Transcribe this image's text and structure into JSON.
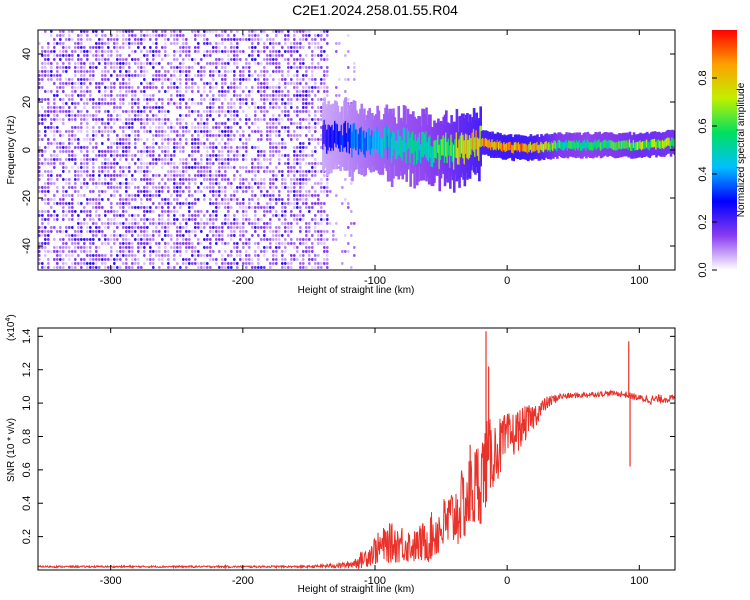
{
  "title": "C2E1.2024.258.01.55.R04",
  "colors": {
    "line": "#e8322a",
    "axis": "#000000"
  },
  "chart_data": [
    {
      "type": "heatmap",
      "name": "spectrogram",
      "xlabel": "Height of straight line (km)",
      "ylabel": "Frequency (Hz)",
      "xlim": [
        -355,
        127
      ],
      "ylim": [
        -50,
        50
      ],
      "x_ticks": [
        -300,
        -200,
        -100,
        0,
        100
      ],
      "y_ticks": [
        -40,
        -20,
        0,
        20,
        40
      ],
      "x_tick_labels": [
        "-300",
        "-200",
        "-100",
        "0",
        "100"
      ],
      "y_tick_labels": [
        "-40",
        "-20",
        "0",
        "20",
        "40"
      ],
      "colorbar": {
        "label": "Normalized spectral amplitude",
        "range": [
          0,
          1
        ],
        "ticks": [
          0.0,
          0.2,
          0.4,
          0.6,
          0.8
        ],
        "tick_labels": [
          "0.0",
          "0.2",
          "0.4",
          "0.6",
          "0.8"
        ],
        "colormap": [
          "#ffffff",
          "#8a3cf0",
          "#0000ff",
          "#00c0ff",
          "#00e060",
          "#c0f000",
          "#ffa000",
          "#ff0000"
        ]
      },
      "noise_region": {
        "x_range": [
          -355,
          -135
        ],
        "freq_range": [
          -50,
          50
        ],
        "amplitude": 0.1
      },
      "signal_track": {
        "x": [
          -140,
          -120,
          -100,
          -80,
          -60,
          -40,
          -20,
          0,
          20,
          40,
          60,
          80,
          100,
          127
        ],
        "freq": [
          6,
          5,
          3,
          2,
          0,
          0,
          3,
          1,
          1,
          2,
          2,
          2,
          2,
          3
        ],
        "amplitude": [
          0.25,
          0.35,
          0.45,
          0.5,
          0.55,
          0.7,
          0.85,
          0.9,
          0.85,
          0.6,
          0.55,
          0.6,
          0.7,
          0.65
        ]
      }
    },
    {
      "type": "line",
      "name": "snr",
      "xlabel": "Height of straight line (km)",
      "ylabel": "SNR (10 * v/v)",
      "scale_label": "(x10",
      "scale_exponent": "4",
      "xlim": [
        -355,
        127
      ],
      "ylim": [
        0,
        1.45
      ],
      "x_ticks": [
        -300,
        -200,
        -100,
        0,
        100
      ],
      "y_ticks": [
        0.2,
        0.4,
        0.6,
        0.8,
        1.0,
        1.2,
        1.4
      ],
      "x_tick_labels": [
        "-300",
        "-200",
        "-100",
        "0",
        "100"
      ],
      "y_tick_labels": [
        "0.2",
        "0.4",
        "0.6",
        "0.8",
        "1.0",
        "1.2",
        "1.4"
      ],
      "envelope": {
        "x": [
          -355,
          -150,
          -120,
          -110,
          -100,
          -90,
          -80,
          -70,
          -60,
          -50,
          -40,
          -30,
          -20,
          -15,
          -10,
          0,
          10,
          20,
          30,
          40,
          60,
          80,
          90,
          100,
          110,
          127
        ],
        "mean": [
          0.02,
          0.02,
          0.03,
          0.06,
          0.12,
          0.16,
          0.16,
          0.14,
          0.18,
          0.25,
          0.32,
          0.42,
          0.55,
          0.65,
          0.7,
          0.78,
          0.85,
          0.92,
          1.0,
          1.04,
          1.05,
          1.06,
          1.05,
          1.03,
          1.02,
          1.03
        ],
        "amp": [
          0.005,
          0.006,
          0.02,
          0.05,
          0.09,
          0.12,
          0.12,
          0.1,
          0.14,
          0.17,
          0.2,
          0.24,
          0.28,
          0.26,
          0.2,
          0.16,
          0.12,
          0.08,
          0.04,
          0.02,
          0.015,
          0.015,
          0.02,
          0.02,
          0.03,
          0.02
        ]
      },
      "spikes": [
        {
          "x": -16,
          "y": 1.43
        },
        {
          "x": -14,
          "y": 1.22
        },
        {
          "x": -28,
          "y": 0.75
        },
        {
          "x": 92,
          "y": 1.37
        },
        {
          "x": 93,
          "y": 0.62
        }
      ]
    }
  ]
}
